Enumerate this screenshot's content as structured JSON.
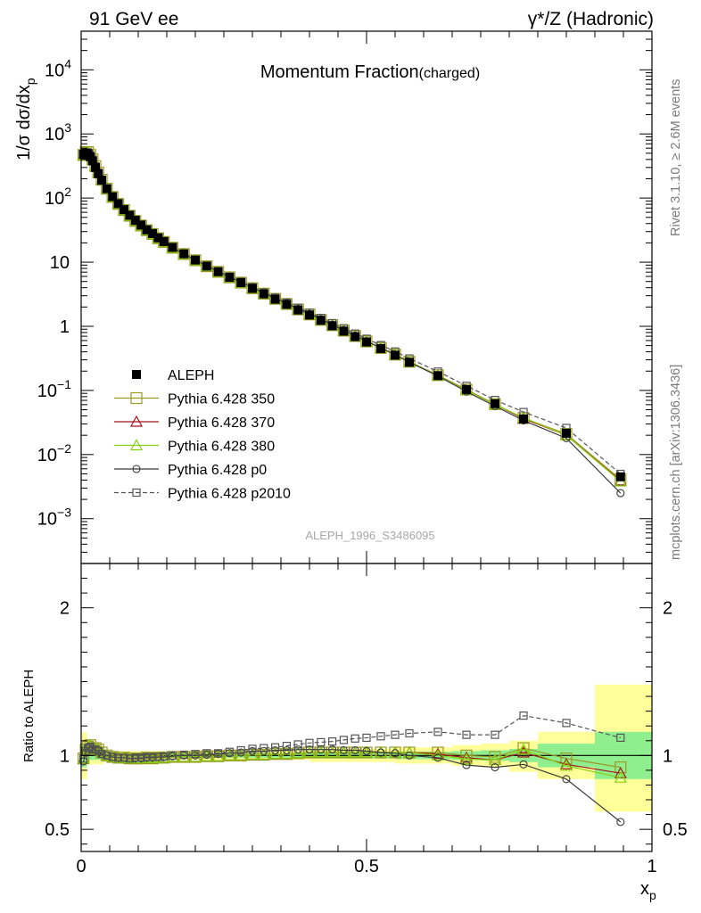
{
  "header": {
    "left": "91 GeV ee",
    "right": "γ*/Z (Hadronic)"
  },
  "side_labels": {
    "rivet": "Rivet 3.1.10, ≥ 2.6M events",
    "mcplots": "mcplots.cern.ch [arXiv:1306.3436]"
  },
  "chart_data": [
    {
      "type": "line",
      "panel": "main",
      "title": "Momentum Fraction",
      "title_suffix": "(charged)",
      "analysis_label": "ALEPH_1996_S3486095",
      "ylabel": "1/σ dσ/dx_p",
      "ylabel_main": "1/σ dσ/dx",
      "ylabel_sub": "p",
      "xlabel": "",
      "xlim": [
        0,
        1
      ],
      "ylim": [
        0.0002,
        40000
      ],
      "y_scale": "log",
      "y_ticks": [
        {
          "value": 0.001,
          "base": "10",
          "exp": "−3"
        },
        {
          "value": 0.01,
          "base": "10",
          "exp": "−2"
        },
        {
          "value": 0.1,
          "base": "10",
          "exp": "−1"
        },
        {
          "value": 1,
          "base": "1",
          "exp": ""
        },
        {
          "value": 10,
          "base": "10",
          "exp": ""
        },
        {
          "value": 100,
          "base": "10",
          "exp": "2"
        },
        {
          "value": 1000,
          "base": "10",
          "exp": "3"
        },
        {
          "value": 10000,
          "base": "10",
          "exp": "4"
        }
      ],
      "legend_position": "center-left",
      "x": [
        0.004,
        0.008,
        0.012,
        0.016,
        0.02,
        0.025,
        0.03,
        0.036,
        0.045,
        0.055,
        0.065,
        0.075,
        0.085,
        0.095,
        0.105,
        0.115,
        0.125,
        0.135,
        0.145,
        0.16,
        0.18,
        0.2,
        0.22,
        0.24,
        0.26,
        0.28,
        0.3,
        0.32,
        0.34,
        0.36,
        0.38,
        0.4,
        0.42,
        0.44,
        0.46,
        0.48,
        0.5,
        0.525,
        0.55,
        0.575,
        0.625,
        0.675,
        0.725,
        0.775,
        0.85,
        0.945
      ],
      "series": [
        {
          "name": "ALEPH",
          "style": "data",
          "color": "#000000",
          "values": [
            480,
            500,
            490,
            440,
            380,
            300,
            240,
            190,
            140,
            105,
            82,
            66,
            54,
            45,
            38,
            32,
            28,
            24,
            21,
            17,
            13.5,
            10.8,
            8.7,
            7.1,
            5.8,
            4.8,
            3.9,
            3.2,
            2.65,
            2.2,
            1.8,
            1.5,
            1.24,
            1.02,
            0.84,
            0.69,
            0.57,
            0.45,
            0.355,
            0.275,
            0.17,
            0.103,
            0.062,
            0.036,
            0.0215,
            0.0045
          ]
        },
        {
          "name": "Pythia 6.428 350",
          "style": "square",
          "color": "#9a9a26",
          "values": [
            470,
            520,
            520,
            470,
            400,
            315,
            250,
            193,
            140,
            104,
            81,
            65,
            53,
            44,
            37.3,
            31.5,
            27.5,
            23.6,
            20.7,
            16.8,
            13.4,
            10.7,
            8.65,
            7.07,
            5.8,
            4.8,
            3.92,
            3.23,
            2.68,
            2.23,
            1.83,
            1.53,
            1.26,
            1.04,
            0.856,
            0.705,
            0.58,
            0.459,
            0.362,
            0.28,
            0.173,
            0.103,
            0.061,
            0.037,
            0.021,
            0.0041
          ]
        },
        {
          "name": "Pythia 6.428 370",
          "style": "triangle",
          "color": "#a3151a",
          "values": [
            470,
            520,
            520,
            470,
            400,
            315,
            250,
            193,
            140,
            104,
            81,
            65,
            53,
            44,
            37.3,
            31.5,
            27.5,
            23.6,
            20.7,
            16.8,
            13.4,
            10.7,
            8.65,
            7.07,
            5.8,
            4.8,
            3.92,
            3.23,
            2.68,
            2.23,
            1.83,
            1.53,
            1.26,
            1.04,
            0.856,
            0.705,
            0.58,
            0.459,
            0.362,
            0.28,
            0.172,
            0.102,
            0.06,
            0.0365,
            0.02,
            0.0039
          ]
        },
        {
          "name": "Pythia 6.428 380",
          "style": "triangle",
          "color": "#86d10f",
          "values": [
            470,
            520,
            520,
            470,
            400,
            315,
            250,
            193,
            140,
            104,
            81,
            65,
            53,
            44,
            37.3,
            31.5,
            27.5,
            23.6,
            20.7,
            16.8,
            13.4,
            10.7,
            8.65,
            7.07,
            5.8,
            4.8,
            3.92,
            3.23,
            2.68,
            2.23,
            1.83,
            1.53,
            1.26,
            1.04,
            0.856,
            0.705,
            0.58,
            0.459,
            0.362,
            0.28,
            0.171,
            0.101,
            0.06,
            0.0375,
            0.02,
            0.0038
          ]
        },
        {
          "name": "Pythia 6.428 p0",
          "style": "circle",
          "color": "#3a3a3a",
          "values": [
            460,
            510,
            515,
            465,
            395,
            312,
            248,
            192,
            140,
            104,
            81,
            65,
            53,
            44,
            37.3,
            31.5,
            27.6,
            23.7,
            20.8,
            16.9,
            13.5,
            10.8,
            8.75,
            7.15,
            5.9,
            4.9,
            4.01,
            3.3,
            2.74,
            2.28,
            1.87,
            1.56,
            1.29,
            1.06,
            0.87,
            0.715,
            0.585,
            0.46,
            0.36,
            0.275,
            0.168,
            0.096,
            0.057,
            0.034,
            0.018,
            0.0025
          ]
        },
        {
          "name": "Pythia 6.428 p2010",
          "style": "open-square-dashed",
          "color": "#555555",
          "values": [
            470,
            515,
            515,
            465,
            395,
            312,
            248,
            192,
            140,
            104,
            81,
            65,
            53,
            44,
            37.3,
            31.6,
            27.6,
            23.8,
            20.9,
            17.0,
            13.6,
            10.9,
            8.8,
            7.2,
            5.95,
            4.96,
            4.07,
            3.36,
            2.8,
            2.34,
            1.94,
            1.63,
            1.35,
            1.12,
            0.93,
            0.77,
            0.64,
            0.51,
            0.405,
            0.315,
            0.197,
            0.118,
            0.071,
            0.046,
            0.026,
            0.005
          ]
        }
      ]
    },
    {
      "type": "line",
      "panel": "ratio",
      "ylabel": "Ratio to ALEPH",
      "xlabel": "x_p",
      "xlabel_main": "x",
      "xlabel_sub": "p",
      "xlim": [
        0,
        1
      ],
      "ylim": [
        0.35,
        2.3
      ],
      "y_ticks": [
        {
          "value": 0.5,
          "label": "0.5"
        },
        {
          "value": 1,
          "label": "1"
        },
        {
          "value": 2,
          "label": "2"
        }
      ],
      "x_ticks": [
        {
          "value": 0,
          "label": "0"
        },
        {
          "value": 0.5,
          "label": "0.5"
        },
        {
          "value": 1,
          "label": "1"
        }
      ],
      "uncertainty_bands": [
        {
          "x0": 0.0,
          "x1": 0.01,
          "stat": [
            0.92,
            1.08
          ],
          "total": [
            0.84,
            1.16
          ]
        },
        {
          "x0": 0.01,
          "x1": 0.04,
          "stat": [
            0.97,
            1.03
          ],
          "total": [
            0.94,
            1.06
          ]
        },
        {
          "x0": 0.04,
          "x1": 0.4,
          "stat": [
            0.985,
            1.015
          ],
          "total": [
            0.97,
            1.03
          ]
        },
        {
          "x0": 0.4,
          "x1": 0.55,
          "stat": [
            0.98,
            1.02
          ],
          "total": [
            0.955,
            1.045
          ]
        },
        {
          "x0": 0.55,
          "x1": 0.65,
          "stat": [
            0.975,
            1.025
          ],
          "total": [
            0.945,
            1.055
          ]
        },
        {
          "x0": 0.65,
          "x1": 0.7,
          "stat": [
            0.97,
            1.03
          ],
          "total": [
            0.93,
            1.07
          ]
        },
        {
          "x0": 0.7,
          "x1": 0.75,
          "stat": [
            0.965,
            1.035
          ],
          "total": [
            0.92,
            1.08
          ]
        },
        {
          "x0": 0.75,
          "x1": 0.8,
          "stat": [
            0.955,
            1.045
          ],
          "total": [
            0.89,
            1.1
          ]
        },
        {
          "x0": 0.8,
          "x1": 0.9,
          "stat": [
            0.92,
            1.08
          ],
          "total": [
            0.84,
            1.16
          ]
        },
        {
          "x0": 0.9,
          "x1": 1.0,
          "stat": [
            0.84,
            1.16
          ],
          "total": [
            0.62,
            1.48
          ]
        }
      ],
      "x": [
        0.004,
        0.008,
        0.012,
        0.016,
        0.02,
        0.025,
        0.03,
        0.036,
        0.045,
        0.055,
        0.065,
        0.075,
        0.085,
        0.095,
        0.105,
        0.115,
        0.125,
        0.135,
        0.145,
        0.16,
        0.18,
        0.2,
        0.22,
        0.24,
        0.26,
        0.28,
        0.3,
        0.32,
        0.34,
        0.36,
        0.38,
        0.4,
        0.42,
        0.44,
        0.46,
        0.48,
        0.5,
        0.525,
        0.55,
        0.575,
        0.625,
        0.675,
        0.725,
        0.775,
        0.85,
        0.945
      ],
      "series": [
        {
          "name": "Pythia 6.428 350",
          "style": "square",
          "color": "#9a9a26",
          "values": [
            0.98,
            1.04,
            1.06,
            1.07,
            1.05,
            1.05,
            1.04,
            1.02,
            1.0,
            0.99,
            0.985,
            0.985,
            0.98,
            0.98,
            0.98,
            0.985,
            0.98,
            0.985,
            0.985,
            0.99,
            0.99,
            0.99,
            0.995,
            0.995,
            1.0,
            1.0,
            1.005,
            1.005,
            1.01,
            1.01,
            1.015,
            1.02,
            1.02,
            1.02,
            1.02,
            1.02,
            1.02,
            1.02,
            1.02,
            1.02,
            1.02,
            1.0,
            0.99,
            1.05,
            0.98,
            0.92
          ]
        },
        {
          "name": "Pythia 6.428 370",
          "style": "triangle",
          "color": "#a3151a",
          "values": [
            0.98,
            1.04,
            1.06,
            1.07,
            1.05,
            1.05,
            1.04,
            1.02,
            1.0,
            0.99,
            0.985,
            0.985,
            0.98,
            0.98,
            0.98,
            0.985,
            0.98,
            0.985,
            0.985,
            0.99,
            0.99,
            0.99,
            0.995,
            0.995,
            1.0,
            1.0,
            1.005,
            1.005,
            1.01,
            1.01,
            1.015,
            1.02,
            1.02,
            1.02,
            1.02,
            1.02,
            1.02,
            1.02,
            1.02,
            1.02,
            1.01,
            0.985,
            0.97,
            1.02,
            0.94,
            0.88
          ]
        },
        {
          "name": "Pythia 6.428 380",
          "style": "triangle",
          "color": "#86d10f",
          "values": [
            0.98,
            1.04,
            1.06,
            1.07,
            1.05,
            1.05,
            1.04,
            1.02,
            1.0,
            0.99,
            0.985,
            0.985,
            0.98,
            0.98,
            0.98,
            0.985,
            0.98,
            0.985,
            0.985,
            0.99,
            0.99,
            0.99,
            0.995,
            0.995,
            1.0,
            1.0,
            1.005,
            1.005,
            1.01,
            1.01,
            1.015,
            1.02,
            1.02,
            1.02,
            1.02,
            1.02,
            1.02,
            1.02,
            1.02,
            1.02,
            1.0,
            0.975,
            0.97,
            1.04,
            0.93,
            0.85
          ]
        },
        {
          "name": "Pythia 6.428 p0",
          "style": "circle",
          "color": "#3a3a3a",
          "values": [
            0.96,
            1.02,
            1.05,
            1.06,
            1.04,
            1.04,
            1.03,
            1.01,
            1.0,
            0.99,
            0.985,
            0.985,
            0.98,
            0.98,
            0.98,
            0.985,
            0.985,
            0.99,
            0.99,
            0.995,
            1.0,
            1.0,
            1.005,
            1.01,
            1.015,
            1.02,
            1.03,
            1.03,
            1.035,
            1.035,
            1.04,
            1.04,
            1.04,
            1.04,
            1.035,
            1.035,
            1.03,
            1.02,
            1.015,
            1.0,
            0.985,
            0.935,
            0.92,
            0.94,
            0.84,
            0.55
          ]
        },
        {
          "name": "Pythia 6.428 p2010",
          "style": "open-square-dashed",
          "color": "#555555",
          "values": [
            0.98,
            1.03,
            1.05,
            1.06,
            1.04,
            1.04,
            1.03,
            1.01,
            1.0,
            0.99,
            0.985,
            0.985,
            0.98,
            0.985,
            0.985,
            0.99,
            0.99,
            0.99,
            0.995,
            1.0,
            1.005,
            1.01,
            1.015,
            1.015,
            1.025,
            1.035,
            1.045,
            1.05,
            1.055,
            1.065,
            1.075,
            1.085,
            1.09,
            1.095,
            1.105,
            1.115,
            1.12,
            1.13,
            1.14,
            1.15,
            1.16,
            1.14,
            1.14,
            1.27,
            1.22,
            1.12
          ]
        }
      ]
    }
  ]
}
